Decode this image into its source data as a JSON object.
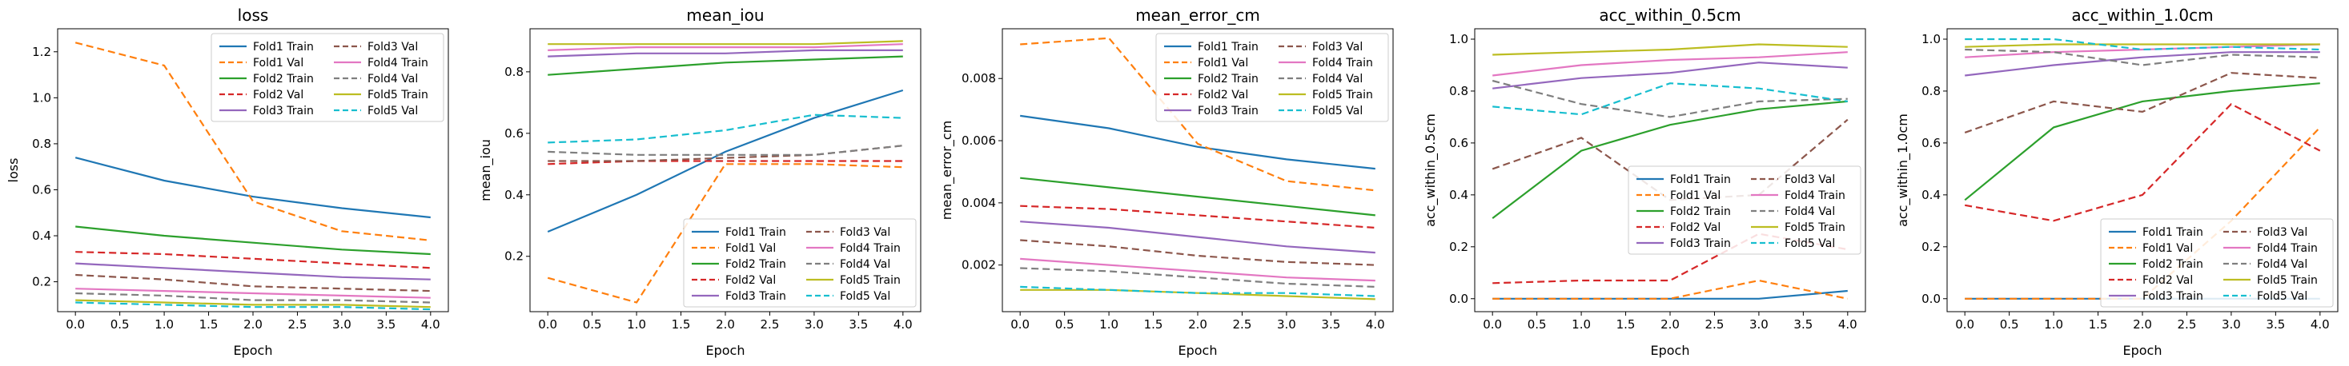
{
  "colors": {
    "Fold1": "#1f77b4",
    "Fold2": "#2ca02c",
    "Fold3": "#9467bd",
    "Fold4": "#e377c2",
    "Fold5": "#bcbd22",
    "Fold1 Val": "#ff7f0e",
    "Fold2 Val": "#d62728",
    "Fold3 Val": "#8c564b",
    "Fold4 Val": "#7f7f7f",
    "Fold5 Val": "#17becf"
  },
  "chart_data": [
    {
      "type": "line",
      "title": "loss",
      "xlabel": "Epoch",
      "ylabel": "loss",
      "x": [
        0,
        1,
        2,
        3,
        4
      ],
      "xticks": [
        "0.0",
        "0.5",
        "1.0",
        "1.5",
        "2.0",
        "2.5",
        "3.0",
        "3.5",
        "4.0"
      ],
      "xlim": [
        -0.2,
        4.2
      ],
      "ylim": [
        0.07,
        1.3
      ],
      "yticks": [
        "0.2",
        "0.4",
        "0.6",
        "0.8",
        "1.0",
        "1.2"
      ],
      "grid": false,
      "legend": "top-right",
      "series": [
        {
          "name": "Fold1 Train",
          "values": [
            0.74,
            0.64,
            0.57,
            0.52,
            0.48
          ]
        },
        {
          "name": "Fold1 Val",
          "values": [
            1.24,
            1.14,
            0.55,
            0.42,
            0.38
          ]
        },
        {
          "name": "Fold2 Train",
          "values": [
            0.44,
            0.4,
            0.37,
            0.34,
            0.32
          ]
        },
        {
          "name": "Fold2 Val",
          "values": [
            0.33,
            0.32,
            0.3,
            0.28,
            0.26
          ]
        },
        {
          "name": "Fold3 Train",
          "values": [
            0.28,
            0.26,
            0.24,
            0.22,
            0.21
          ]
        },
        {
          "name": "Fold3 Val",
          "values": [
            0.23,
            0.21,
            0.18,
            0.17,
            0.16
          ]
        },
        {
          "name": "Fold4 Train",
          "values": [
            0.17,
            0.16,
            0.15,
            0.14,
            0.13
          ]
        },
        {
          "name": "Fold4 Val",
          "values": [
            0.15,
            0.14,
            0.12,
            0.12,
            0.11
          ]
        },
        {
          "name": "Fold5 Train",
          "values": [
            0.12,
            0.11,
            0.1,
            0.1,
            0.09
          ]
        },
        {
          "name": "Fold5 Val",
          "values": [
            0.11,
            0.1,
            0.09,
            0.09,
            0.08
          ]
        }
      ]
    },
    {
      "type": "line",
      "title": "mean_iou",
      "xlabel": "Epoch",
      "ylabel": "mean_iou",
      "x": [
        0,
        1,
        2,
        3,
        4
      ],
      "xticks": [
        "0.0",
        "0.5",
        "1.0",
        "1.5",
        "2.0",
        "2.5",
        "3.0",
        "3.5",
        "4.0"
      ],
      "xlim": [
        -0.2,
        4.2
      ],
      "ylim": [
        0.02,
        0.94
      ],
      "yticks": [
        "0.2",
        "0.4",
        "0.6",
        "0.8"
      ],
      "grid": false,
      "legend": "lower-right",
      "series": [
        {
          "name": "Fold1 Train",
          "values": [
            0.28,
            0.4,
            0.54,
            0.65,
            0.74
          ]
        },
        {
          "name": "Fold1 Val",
          "values": [
            0.13,
            0.05,
            0.5,
            0.5,
            0.49
          ]
        },
        {
          "name": "Fold2 Train",
          "values": [
            0.79,
            0.81,
            0.83,
            0.84,
            0.85
          ]
        },
        {
          "name": "Fold2 Val",
          "values": [
            0.5,
            0.51,
            0.51,
            0.51,
            0.51
          ]
        },
        {
          "name": "Fold3 Train",
          "values": [
            0.85,
            0.86,
            0.86,
            0.87,
            0.87
          ]
        },
        {
          "name": "Fold3 Val",
          "values": [
            0.51,
            0.51,
            0.52,
            0.53,
            0.56
          ]
        },
        {
          "name": "Fold4 Train",
          "values": [
            0.87,
            0.88,
            0.88,
            0.88,
            0.89
          ]
        },
        {
          "name": "Fold4 Val",
          "values": [
            0.54,
            0.53,
            0.53,
            0.53,
            0.56
          ]
        },
        {
          "name": "Fold5 Train",
          "values": [
            0.89,
            0.89,
            0.89,
            0.89,
            0.9
          ]
        },
        {
          "name": "Fold5 Val",
          "values": [
            0.57,
            0.58,
            0.61,
            0.66,
            0.65
          ]
        }
      ]
    },
    {
      "type": "line",
      "title": "mean_error_cm",
      "xlabel": "Epoch",
      "ylabel": "mean_error_cm",
      "x": [
        0,
        1,
        2,
        3,
        4
      ],
      "xticks": [
        "0.0",
        "0.5",
        "1.0",
        "1.5",
        "2.0",
        "2.5",
        "3.0",
        "3.5",
        "4.0"
      ],
      "xlim": [
        -0.2,
        4.2
      ],
      "ylim": [
        0.0005,
        0.0096
      ],
      "yticks": [
        "0.002",
        "0.004",
        "0.006",
        "0.008"
      ],
      "grid": false,
      "legend": "top-right",
      "series": [
        {
          "name": "Fold1 Train",
          "values": [
            0.0068,
            0.0064,
            0.0058,
            0.0054,
            0.0051
          ]
        },
        {
          "name": "Fold1 Val",
          "values": [
            0.0091,
            0.0093,
            0.0059,
            0.0047,
            0.0044
          ]
        },
        {
          "name": "Fold2 Train",
          "values": [
            0.0048,
            0.0045,
            0.0042,
            0.0039,
            0.0036
          ]
        },
        {
          "name": "Fold2 Val",
          "values": [
            0.0039,
            0.0038,
            0.0036,
            0.0034,
            0.0032
          ]
        },
        {
          "name": "Fold3 Train",
          "values": [
            0.0034,
            0.0032,
            0.0029,
            0.0026,
            0.0024
          ]
        },
        {
          "name": "Fold3 Val",
          "values": [
            0.0028,
            0.0026,
            0.0023,
            0.0021,
            0.002
          ]
        },
        {
          "name": "Fold4 Train",
          "values": [
            0.0022,
            0.002,
            0.0018,
            0.0016,
            0.0015
          ]
        },
        {
          "name": "Fold4 Val",
          "values": [
            0.0019,
            0.0018,
            0.0016,
            0.0014,
            0.0013
          ]
        },
        {
          "name": "Fold5 Train",
          "values": [
            0.0012,
            0.0012,
            0.0011,
            0.001,
            0.0009
          ]
        },
        {
          "name": "Fold5 Val",
          "values": [
            0.0013,
            0.0012,
            0.0011,
            0.0011,
            0.001
          ]
        }
      ]
    },
    {
      "type": "line",
      "title": "acc_within_0.5cm",
      "xlabel": "Epoch",
      "ylabel": "acc_within_0.5cm",
      "x": [
        0,
        1,
        2,
        3,
        4
      ],
      "xticks": [
        "0.0",
        "0.5",
        "1.0",
        "1.5",
        "2.0",
        "2.5",
        "3.0",
        "3.5",
        "4.0"
      ],
      "xlim": [
        -0.2,
        4.2
      ],
      "ylim": [
        -0.05,
        1.04
      ],
      "yticks": [
        "0.0",
        "0.2",
        "0.4",
        "0.6",
        "0.8",
        "1.0"
      ],
      "grid": false,
      "legend": "center-right",
      "series": [
        {
          "name": "Fold1 Train",
          "values": [
            0.0,
            0.0,
            0.0,
            0.0,
            0.03
          ]
        },
        {
          "name": "Fold1 Val",
          "values": [
            0.0,
            0.0,
            0.0,
            0.07,
            0.0
          ]
        },
        {
          "name": "Fold2 Train",
          "values": [
            0.31,
            0.57,
            0.67,
            0.73,
            0.76
          ]
        },
        {
          "name": "Fold2 Val",
          "values": [
            0.06,
            0.07,
            0.07,
            0.25,
            0.19
          ]
        },
        {
          "name": "Fold3 Train",
          "values": [
            0.81,
            0.85,
            0.87,
            0.91,
            0.89
          ]
        },
        {
          "name": "Fold3 Val",
          "values": [
            0.5,
            0.62,
            0.38,
            0.4,
            0.69
          ]
        },
        {
          "name": "Fold4 Train",
          "values": [
            0.86,
            0.9,
            0.92,
            0.93,
            0.95
          ]
        },
        {
          "name": "Fold4 Val",
          "values": [
            0.84,
            0.75,
            0.7,
            0.76,
            0.77
          ]
        },
        {
          "name": "Fold5 Train",
          "values": [
            0.94,
            0.95,
            0.96,
            0.98,
            0.97
          ]
        },
        {
          "name": "Fold5 Val",
          "values": [
            0.74,
            0.71,
            0.83,
            0.81,
            0.76
          ]
        }
      ]
    },
    {
      "type": "line",
      "title": "acc_within_1.0cm",
      "xlabel": "Epoch",
      "ylabel": "acc_within_1.0cm",
      "x": [
        0,
        1,
        2,
        3,
        4
      ],
      "xticks": [
        "0.0",
        "0.5",
        "1.0",
        "1.5",
        "2.0",
        "2.5",
        "3.0",
        "3.5",
        "4.0"
      ],
      "xlim": [
        -0.2,
        4.2
      ],
      "ylim": [
        -0.05,
        1.04
      ],
      "yticks": [
        "0.0",
        "0.2",
        "0.4",
        "0.6",
        "0.8",
        "1.0"
      ],
      "grid": false,
      "legend": "lower-right",
      "series": [
        {
          "name": "Fold1 Train",
          "values": [
            0.0,
            0.0,
            0.0,
            0.0,
            0.0
          ]
        },
        {
          "name": "Fold1 Val",
          "values": [
            0.0,
            0.0,
            0.0,
            0.3,
            0.66
          ]
        },
        {
          "name": "Fold2 Train",
          "values": [
            0.38,
            0.66,
            0.76,
            0.8,
            0.83
          ]
        },
        {
          "name": "Fold2 Val",
          "values": [
            0.36,
            0.3,
            0.4,
            0.75,
            0.57
          ]
        },
        {
          "name": "Fold3 Train",
          "values": [
            0.86,
            0.9,
            0.93,
            0.95,
            0.95
          ]
        },
        {
          "name": "Fold3 Val",
          "values": [
            0.64,
            0.76,
            0.72,
            0.87,
            0.85
          ]
        },
        {
          "name": "Fold4 Train",
          "values": [
            0.93,
            0.95,
            0.96,
            0.97,
            0.98
          ]
        },
        {
          "name": "Fold4 Val",
          "values": [
            0.96,
            0.95,
            0.9,
            0.94,
            0.93
          ]
        },
        {
          "name": "Fold5 Train",
          "values": [
            0.97,
            0.98,
            0.98,
            0.98,
            0.98
          ]
        },
        {
          "name": "Fold5 Val",
          "values": [
            1.0,
            1.0,
            0.96,
            0.97,
            0.96
          ]
        }
      ]
    }
  ]
}
